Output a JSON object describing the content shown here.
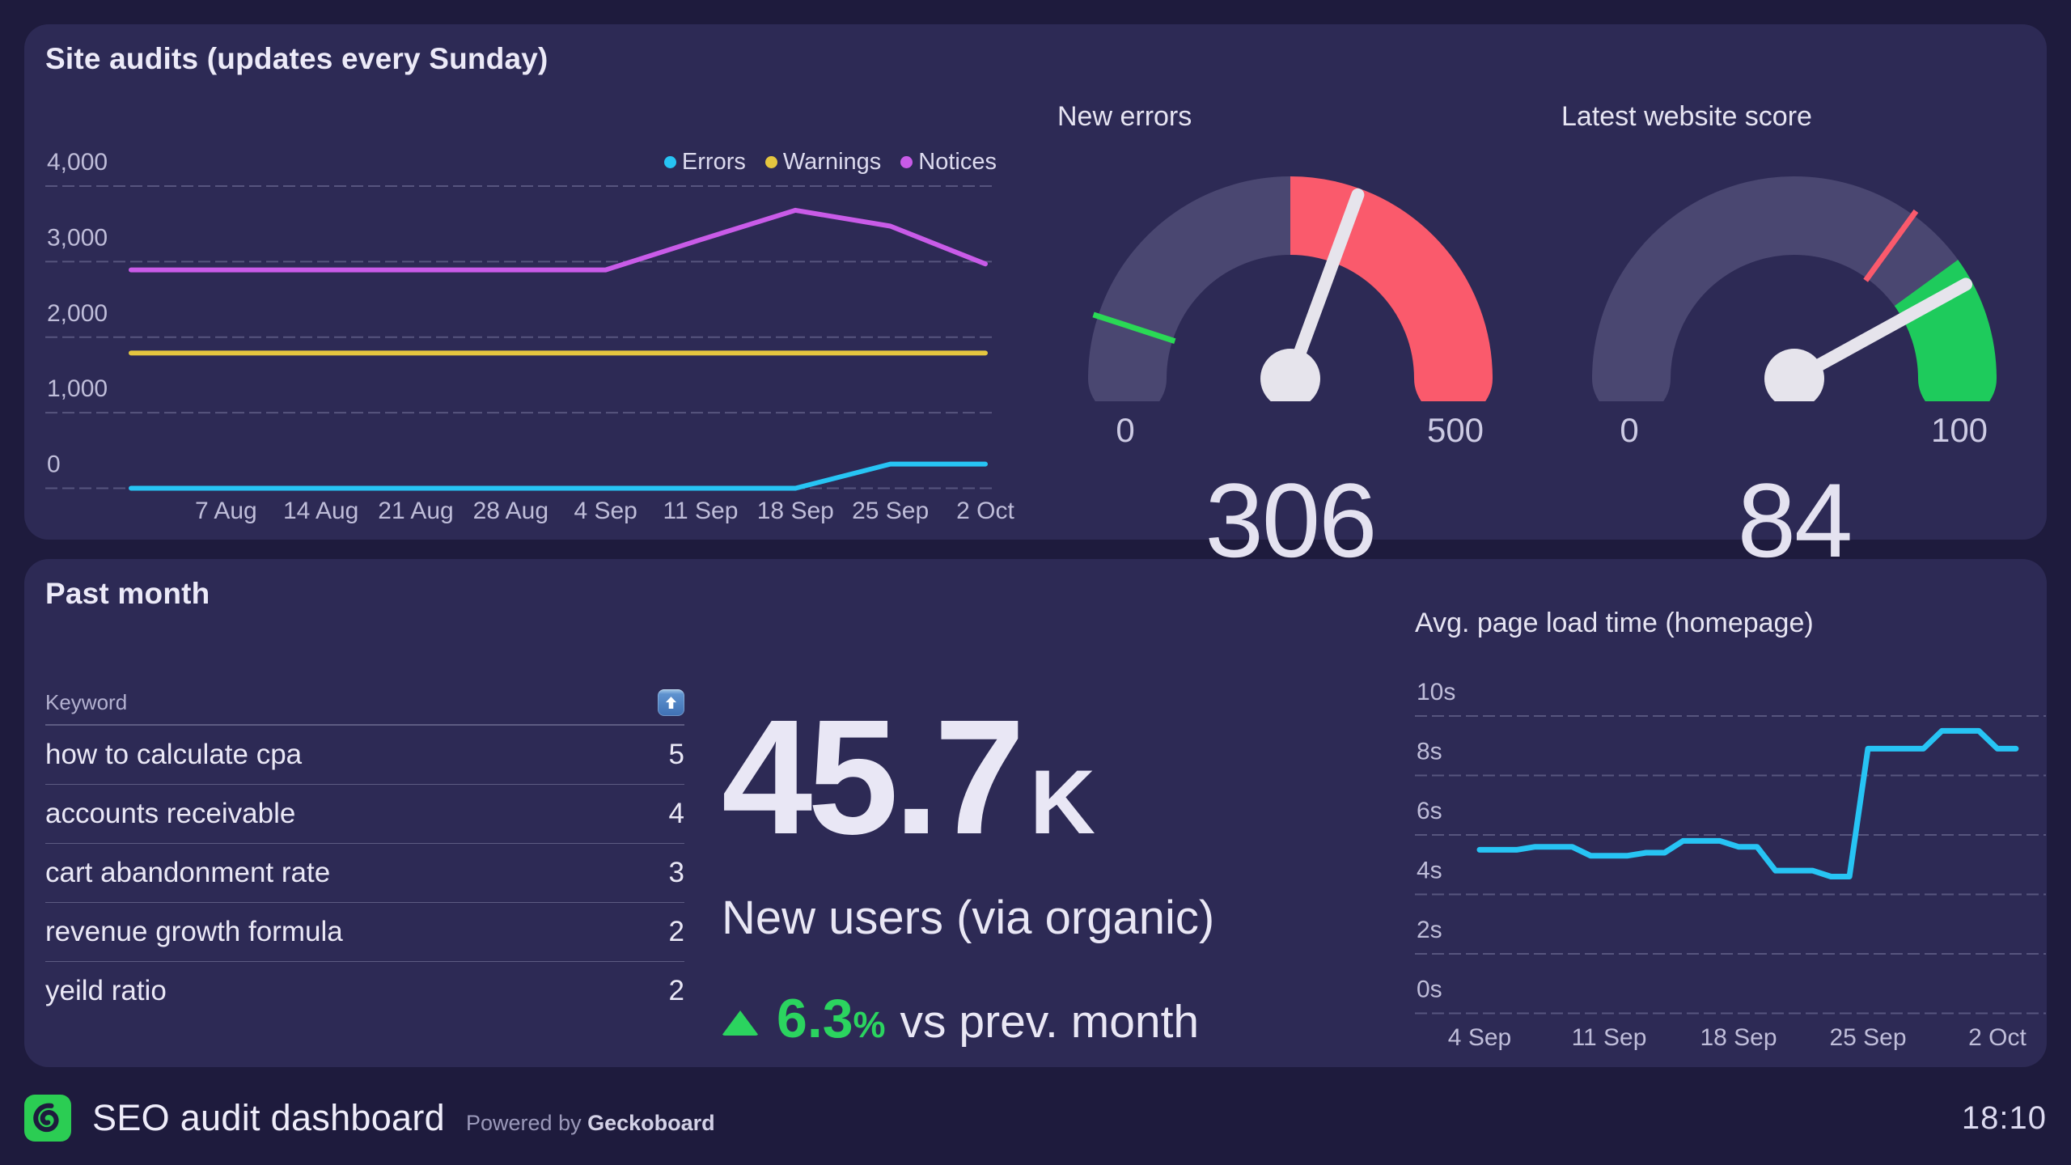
{
  "page": {
    "clock": "18:10"
  },
  "panels": {
    "top_title": "Site audits (updates every Sunday)",
    "bottom_title": "Past month"
  },
  "footer": {
    "title": "SEO audit dashboard",
    "powered_prefix": "Powered by",
    "powered_brand": "Geckoboard",
    "logo": "geckoboard-spiral"
  },
  "theme": {
    "page_bg": "#1e1b3d",
    "panel_bg": "#2d2a55",
    "text": "#eceaf8",
    "axis_text": "#bfbdd9",
    "grid": "rgba(198,196,232,0.28)",
    "cyan": "#27c4f4",
    "yellow": "#e5c63f",
    "purple": "#c95be8",
    "red": "#fa5a6c",
    "green": "#1ecb5c",
    "delta_green": "#2bd45f",
    "needle": "#e6e4ec",
    "gauge_track": "#4a4771"
  },
  "chart_data": [
    {
      "id": "site_audits",
      "type": "line",
      "x_labels": [
        "7 Aug",
        "14 Aug",
        "21 Aug",
        "28 Aug",
        "4 Sep",
        "11 Sep",
        "18 Sep",
        "25 Sep",
        "2 Oct"
      ],
      "first_point_unlabeled": true,
      "ylim": [
        0,
        4000
      ],
      "yticks": [
        0,
        1000,
        2000,
        3000,
        4000
      ],
      "ytick_labels": [
        "0",
        "1,000",
        "2,000",
        "3,000",
        "4,000"
      ],
      "grid": "dashed",
      "legend_position": "top-right",
      "series": [
        {
          "name": "Errors",
          "color": "#27c4f4",
          "values": [
            0,
            0,
            0,
            0,
            0,
            0,
            0,
            0,
            320,
            320
          ]
        },
        {
          "name": "Warnings",
          "color": "#e5c63f",
          "values": [
            1790,
            1790,
            1790,
            1790,
            1790,
            1790,
            1790,
            1790,
            1790,
            1790
          ]
        },
        {
          "name": "Notices",
          "color": "#c95be8",
          "values": [
            2890,
            2890,
            2890,
            2890,
            2890,
            2890,
            3290,
            3680,
            3470,
            2970
          ]
        }
      ]
    },
    {
      "id": "new_errors",
      "type": "gauge",
      "title": "New errors",
      "min": 0,
      "max": 500,
      "value": 306,
      "min_label": "0",
      "max_label": "500",
      "value_label": "306",
      "zones": [
        {
          "from": 0,
          "to": 250,
          "color": "#4a4771"
        },
        {
          "from": 250,
          "to": 500,
          "color": "#fa5a6c"
        }
      ],
      "threshold_ticks": [
        {
          "value": 50,
          "color": "#2ad955"
        }
      ]
    },
    {
      "id": "website_score",
      "type": "gauge",
      "title": "Latest website score",
      "min": 0,
      "max": 100,
      "value": 84,
      "min_label": "0",
      "max_label": "100",
      "value_label": "84",
      "zones": [
        {
          "from": 0,
          "to": 80,
          "color": "#4a4771"
        },
        {
          "from": 80,
          "to": 100,
          "color": "#1ecb5c"
        }
      ],
      "threshold_ticks": [
        {
          "value": 70,
          "color": "#fa5a6c"
        }
      ]
    },
    {
      "id": "keywords",
      "type": "table",
      "columns": [
        "Keyword"
      ],
      "sort_icon": "up-arrow",
      "rows": [
        {
          "keyword": "how to calculate cpa",
          "value": "5"
        },
        {
          "keyword": "accounts receivable",
          "value": "4"
        },
        {
          "keyword": "cart abandonment rate",
          "value": "3"
        },
        {
          "keyword": "revenue growth formula",
          "value": "2"
        },
        {
          "keyword": "yeild ratio",
          "value": "2"
        }
      ]
    },
    {
      "id": "new_users",
      "type": "number",
      "value": "45.7",
      "suffix": "K",
      "label": "New users (via organic)",
      "change": {
        "direction": "up",
        "value": "6.3",
        "unit": "%",
        "text": "vs prev. month",
        "color": "#2bd45f"
      }
    },
    {
      "id": "load_time",
      "type": "line",
      "title": "Avg. page load time (homepage)",
      "x_labels": [
        "4 Sep",
        "11 Sep",
        "18 Sep",
        "25 Sep",
        "2 Oct"
      ],
      "points_per_label_interval": 7,
      "ylim": [
        0,
        10
      ],
      "yticks": [
        0,
        2,
        4,
        6,
        8,
        10
      ],
      "ytick_labels": [
        "0s",
        "2s",
        "4s",
        "6s",
        "8s",
        "10s"
      ],
      "grid": "dashed",
      "series": [
        {
          "name": "Avg. page load time",
          "color": "#27c4f4",
          "values": [
            5.5,
            5.5,
            5.5,
            5.6,
            5.6,
            5.6,
            5.3,
            5.3,
            5.3,
            5.4,
            5.4,
            5.8,
            5.8,
            5.8,
            5.6,
            5.6,
            4.8,
            4.8,
            4.8,
            4.6,
            4.6,
            8.9,
            8.9,
            8.9,
            8.9,
            9.5,
            9.5,
            9.5,
            8.9,
            8.9
          ]
        }
      ]
    }
  ]
}
